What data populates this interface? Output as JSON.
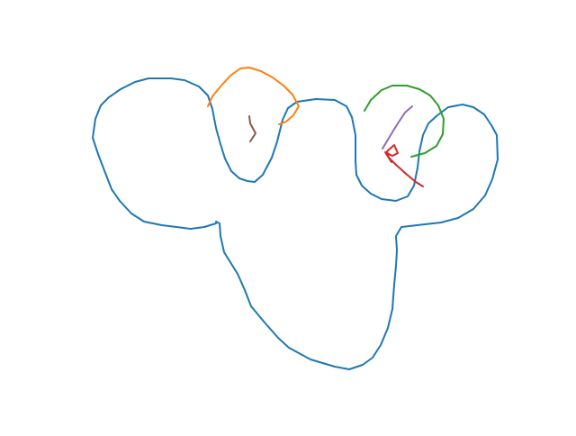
{
  "strokes": [
    {
      "name": "blue-outline-stroke",
      "color": "#1f77b4"
    },
    {
      "name": "orange-arc-stroke",
      "color": "#ff7f0e"
    },
    {
      "name": "brown-tick-stroke",
      "color": "#8c564b"
    },
    {
      "name": "green-arc-stroke",
      "color": "#2ca02c"
    },
    {
      "name": "purple-line-stroke",
      "color": "#9467bd"
    },
    {
      "name": "red-scribble-stroke",
      "color": "#d62728"
    }
  ]
}
